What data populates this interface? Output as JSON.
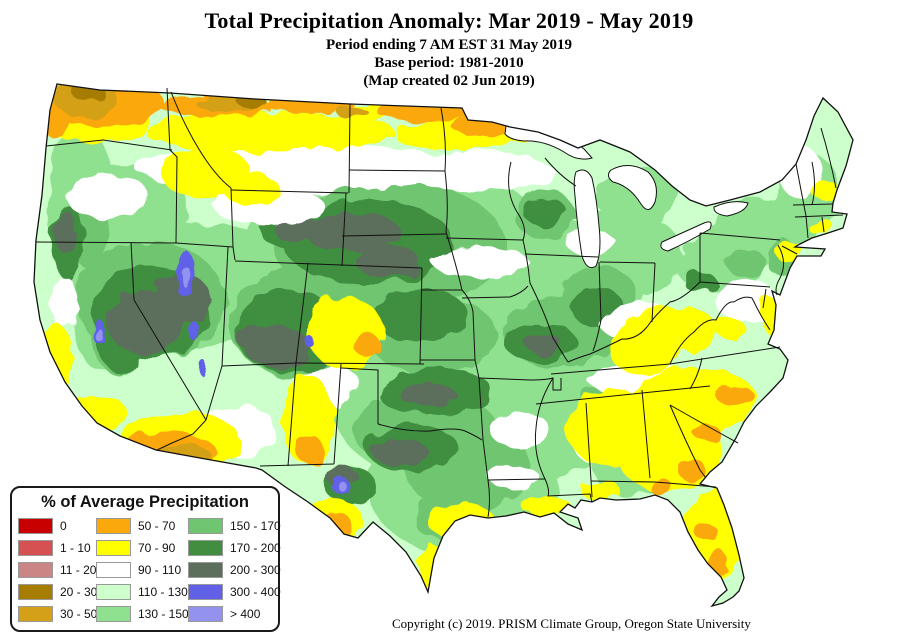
{
  "header": {
    "title": "Total Precipitation Anomaly: Mar 2019 - May 2019",
    "period_line": "Period ending 7 AM EST 31 May 2019",
    "base_period_line": "Base period: 1981-2010",
    "created_line": "(Map created 02 Jun 2019)"
  },
  "map": {
    "type": "choropleth-raster",
    "area": "Contiguous United States",
    "units": "% of average precipitation"
  },
  "legend": {
    "title": "% of Average Precipitation",
    "columns": [
      [
        {
          "label": "0",
          "color_key": "p0"
        },
        {
          "label": "1 - 10",
          "color_key": "p1_10"
        },
        {
          "label": "11 - 20",
          "color_key": "p11_20"
        },
        {
          "label": "20 - 30",
          "color_key": "p20_30"
        },
        {
          "label": "30 - 50",
          "color_key": "p30_50"
        }
      ],
      [
        {
          "label": "50 - 70",
          "color_key": "p50_70"
        },
        {
          "label": "70 - 90",
          "color_key": "p70_90"
        },
        {
          "label": "90 - 110",
          "color_key": "p90_110"
        },
        {
          "label": "110 - 130",
          "color_key": "p110_130"
        },
        {
          "label": "130 - 150",
          "color_key": "p130_150"
        }
      ],
      [
        {
          "label": "150 - 170",
          "color_key": "p150_170"
        },
        {
          "label": "170 - 200",
          "color_key": "p170_200"
        },
        {
          "label": "200 - 300",
          "color_key": "p200_300"
        },
        {
          "label": "300 - 400",
          "color_key": "p300_400"
        },
        {
          "label": "> 400",
          "color_key": "p400plus"
        }
      ]
    ]
  },
  "palette": {
    "p0": "#C80000",
    "p1_10": "#D65252",
    "p11_20": "#CC8585",
    "p20_30": "#A67D00",
    "p30_50": "#D4A017",
    "p50_70": "#FBA80D",
    "p70_90": "#FFFF00",
    "p90_110": "#FFFFFF",
    "p110_130": "#CCFFCC",
    "p130_150": "#8FE08F",
    "p150_170": "#70C670",
    "p170_200": "#418E41",
    "p200_300": "#5C6E5C",
    "p300_400": "#6161E8",
    "p400plus": "#9393EF",
    "border": "#111111",
    "water": "#FFFFFF"
  },
  "footer": {
    "copyright": "Copyright (c) 2019. PRISM Climate Group, Oregon State University"
  }
}
